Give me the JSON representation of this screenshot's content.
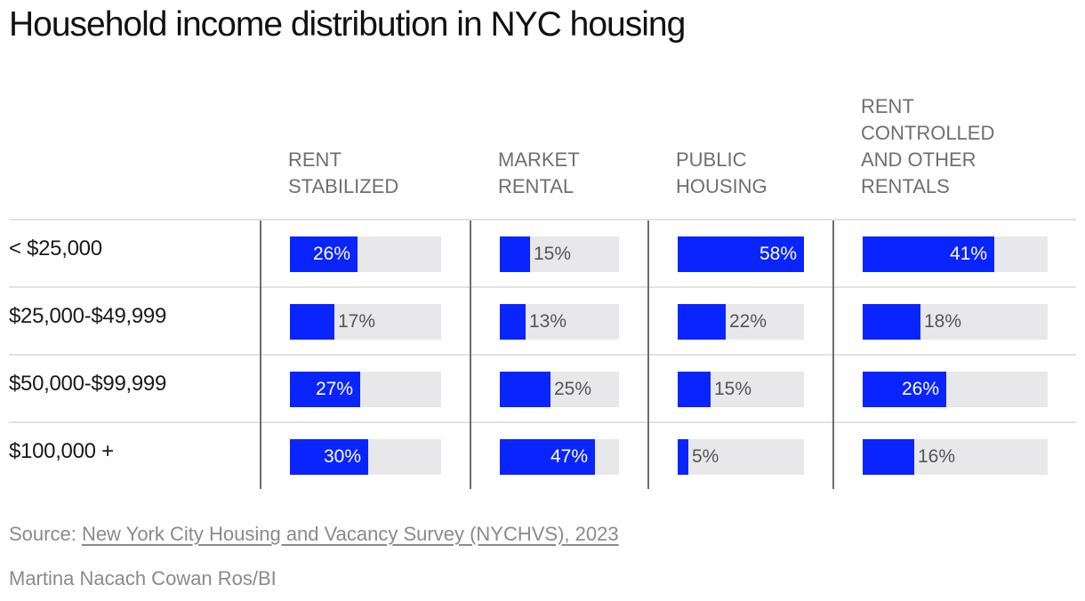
{
  "chart_data": {
    "type": "bar",
    "title": "Household income distribution in NYC housing",
    "columns": [
      "RENT\nSTABILIZED",
      "MARKET\nRENTAL",
      "PUBLIC\nHOUSING",
      "RENT\nCONTROLLED\nAND OTHER\nRENTALS"
    ],
    "rows": [
      "< $25,000",
      "$25,000-$49,999",
      "$50,000-$99,999",
      "$100,000 +"
    ],
    "values": [
      [
        26,
        15,
        58,
        41
      ],
      [
        17,
        13,
        22,
        18
      ],
      [
        27,
        25,
        15,
        26
      ],
      [
        30,
        47,
        5,
        16
      ]
    ],
    "value_suffix": "%",
    "bar_color": "#0a24ff",
    "track_color": "#e8e8ea"
  },
  "footer": {
    "source_prefix": "Source: ",
    "source_link": "New York City Housing and Vacancy Survey (NYCHVS), 2023",
    "credit": "Martina Nacach Cowan Ros/BI"
  }
}
